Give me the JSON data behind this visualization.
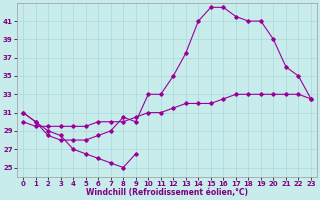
{
  "bg_color": "#c8ecec",
  "grid_color": "#aad8d8",
  "line_color": "#990099",
  "xlabel": "Windchill (Refroidissement éolien,°C)",
  "ylim": [
    24,
    43
  ],
  "xlim": [
    -0.5,
    23.5
  ],
  "yticks": [
    25,
    27,
    29,
    31,
    33,
    35,
    37,
    39,
    41
  ],
  "xticks": [
    0,
    1,
    2,
    3,
    4,
    5,
    6,
    7,
    8,
    9,
    10,
    11,
    12,
    13,
    14,
    15,
    16,
    17,
    18,
    19,
    20,
    21,
    22,
    23
  ],
  "series": [
    {
      "x": [
        0,
        1,
        2,
        3,
        4,
        5,
        6,
        7,
        8,
        9
      ],
      "y": [
        31,
        30,
        29,
        28.5,
        27,
        26.5,
        26,
        25.5,
        25,
        26.5
      ]
    },
    {
      "x": [
        0,
        1,
        2,
        3,
        4,
        5,
        6,
        7,
        8,
        9,
        10,
        11,
        12,
        13,
        14,
        15,
        16,
        17,
        18,
        19,
        20,
        21,
        22,
        23
      ],
      "y": [
        31,
        30,
        28.5,
        28,
        28,
        28,
        28.5,
        29,
        30.5,
        30,
        33,
        33,
        35,
        37.5,
        41,
        42.5,
        42.5,
        41.5,
        41,
        41,
        39,
        36,
        35,
        32.5
      ]
    },
    {
      "x": [
        0,
        1,
        2,
        3,
        4,
        5,
        6,
        7,
        8,
        9,
        10,
        11,
        12,
        13,
        14,
        15,
        16,
        17,
        18,
        19,
        20,
        21,
        22,
        23
      ],
      "y": [
        30,
        29.5,
        29.5,
        29.5,
        29.5,
        29.5,
        30,
        30,
        30,
        30.5,
        31,
        31,
        31.5,
        32,
        32,
        32,
        32.5,
        33,
        33,
        33,
        33,
        33,
        33,
        32.5
      ]
    }
  ]
}
